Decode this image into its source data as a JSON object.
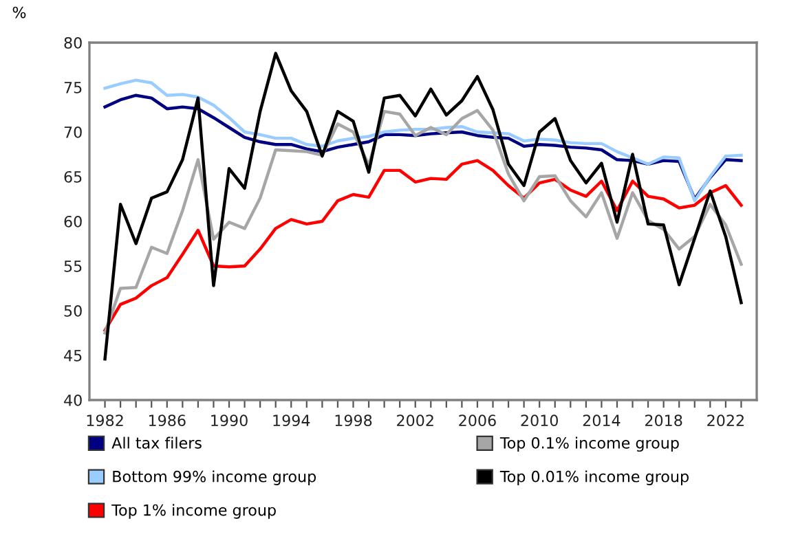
{
  "chart_data": {
    "type": "line",
    "ylabel": "%",
    "x": [
      1982,
      1983,
      1984,
      1985,
      1986,
      1987,
      1988,
      1989,
      1990,
      1991,
      1992,
      1993,
      1994,
      1995,
      1996,
      1997,
      1998,
      1999,
      2000,
      2001,
      2002,
      2003,
      2004,
      2005,
      2006,
      2007,
      2008,
      2009,
      2010,
      2011,
      2012,
      2013,
      2014,
      2015,
      2016,
      2017,
      2018,
      2019,
      2020,
      2021,
      2022,
      2023
    ],
    "series": [
      {
        "name": "All tax filers",
        "color": "#000080",
        "values": [
          72.8,
          73.6,
          74.1,
          73.8,
          72.6,
          72.8,
          72.6,
          71.6,
          70.5,
          69.4,
          68.9,
          68.6,
          68.6,
          68.1,
          67.8,
          68.3,
          68.6,
          68.9,
          69.7,
          69.7,
          69.6,
          69.8,
          69.9,
          70.0,
          69.6,
          69.4,
          69.3,
          68.4,
          68.6,
          68.5,
          68.3,
          68.2,
          68.0,
          66.9,
          66.8,
          66.4,
          66.8,
          66.7,
          62.5,
          64.9,
          66.9,
          66.8
        ]
      },
      {
        "name": "Bottom 99% income group",
        "color": "#99ccff",
        "values": [
          74.9,
          75.4,
          75.8,
          75.5,
          74.1,
          74.2,
          73.9,
          73.0,
          71.6,
          70.0,
          69.7,
          69.3,
          69.3,
          68.6,
          68.4,
          69.0,
          69.3,
          69.5,
          70.0,
          70.2,
          70.3,
          70.3,
          70.5,
          70.6,
          70.0,
          69.9,
          69.8,
          69.0,
          69.2,
          69.1,
          68.8,
          68.7,
          68.7,
          67.8,
          67.1,
          66.4,
          67.2,
          67.1,
          62.3,
          65.0,
          67.3,
          67.4
        ]
      },
      {
        "name": "Top 1% income group",
        "color": "#ff0000",
        "values": [
          47.8,
          50.7,
          51.4,
          52.8,
          53.7,
          56.3,
          59.0,
          55.0,
          54.9,
          55.0,
          56.9,
          59.2,
          60.2,
          59.7,
          60.0,
          62.3,
          63.0,
          62.7,
          65.7,
          65.7,
          64.4,
          64.8,
          64.7,
          66.4,
          66.8,
          65.7,
          64.0,
          62.6,
          64.3,
          64.7,
          63.5,
          62.8,
          64.5,
          61.2,
          64.5,
          62.8,
          62.5,
          61.5,
          61.8,
          63.2,
          64.0,
          61.8
        ]
      },
      {
        "name": "Top 0.1% income group",
        "color": "#a6a6a6",
        "values": [
          47.5,
          52.5,
          52.6,
          57.1,
          56.4,
          61.2,
          66.9,
          58.0,
          59.9,
          59.2,
          62.6,
          68.0,
          67.9,
          67.8,
          67.4,
          70.9,
          70.0,
          66.3,
          72.3,
          72.0,
          69.6,
          70.5,
          69.7,
          71.5,
          72.4,
          70.2,
          65.3,
          62.3,
          65.0,
          65.1,
          62.3,
          60.5,
          63.2,
          58.1,
          63.2,
          60.1,
          59.1,
          56.9,
          58.3,
          61.9,
          59.6,
          55.2
        ]
      },
      {
        "name": "Top 0.01% income group",
        "color": "#000000",
        "values": [
          44.6,
          61.9,
          57.5,
          62.6,
          63.3,
          66.9,
          73.8,
          52.8,
          65.9,
          63.7,
          72.3,
          78.8,
          74.6,
          72.3,
          67.3,
          72.3,
          71.2,
          65.5,
          73.8,
          74.1,
          71.8,
          74.8,
          71.9,
          73.5,
          76.2,
          72.5,
          66.4,
          64.0,
          70.0,
          71.5,
          66.8,
          64.3,
          66.5,
          59.9,
          67.5,
          59.7,
          59.6,
          52.9,
          58.1,
          63.4,
          58.3,
          50.9
        ]
      }
    ],
    "xlim": [
      1981,
      2024
    ],
    "xticks": [
      1982,
      {
        "value": 1983,
        "label": null
      },
      {
        "value": 1984,
        "label": null
      },
      {
        "value": 1985,
        "label": null
      },
      1986,
      {
        "value": 1987,
        "label": null
      },
      {
        "value": 1988,
        "label": null
      },
      {
        "value": 1989,
        "label": null
      },
      1990,
      {
        "value": 1991,
        "label": null
      },
      {
        "value": 1992,
        "label": null
      },
      {
        "value": 1993,
        "label": null
      },
      1994,
      {
        "value": 1995,
        "label": null
      },
      {
        "value": 1996,
        "label": null
      },
      {
        "value": 1997,
        "label": null
      },
      1998,
      {
        "value": 1999,
        "label": null
      },
      {
        "value": 2000,
        "label": null
      },
      {
        "value": 2001,
        "label": null
      },
      2002,
      {
        "value": 2003,
        "label": null
      },
      {
        "value": 2004,
        "label": null
      },
      {
        "value": 2005,
        "label": null
      },
      2006,
      {
        "value": 2007,
        "label": null
      },
      {
        "value": 2008,
        "label": null
      },
      {
        "value": 2009,
        "label": null
      },
      2010,
      {
        "value": 2011,
        "label": null
      },
      {
        "value": 2012,
        "label": null
      },
      {
        "value": 2013,
        "label": null
      },
      2014,
      {
        "value": 2015,
        "label": null
      },
      {
        "value": 2016,
        "label": null
      },
      {
        "value": 2017,
        "label": null
      },
      2018,
      {
        "value": 2019,
        "label": null
      },
      {
        "value": 2020,
        "label": null
      },
      {
        "value": 2021,
        "label": null
      },
      2022,
      {
        "value": 2023,
        "label": null
      }
    ],
    "ylim": [
      40,
      80
    ],
    "yticks": [
      40,
      45,
      50,
      55,
      60,
      65,
      70,
      75,
      80
    ],
    "grid": false,
    "legend": "bottom",
    "marker": "none",
    "line_style": "solid"
  }
}
